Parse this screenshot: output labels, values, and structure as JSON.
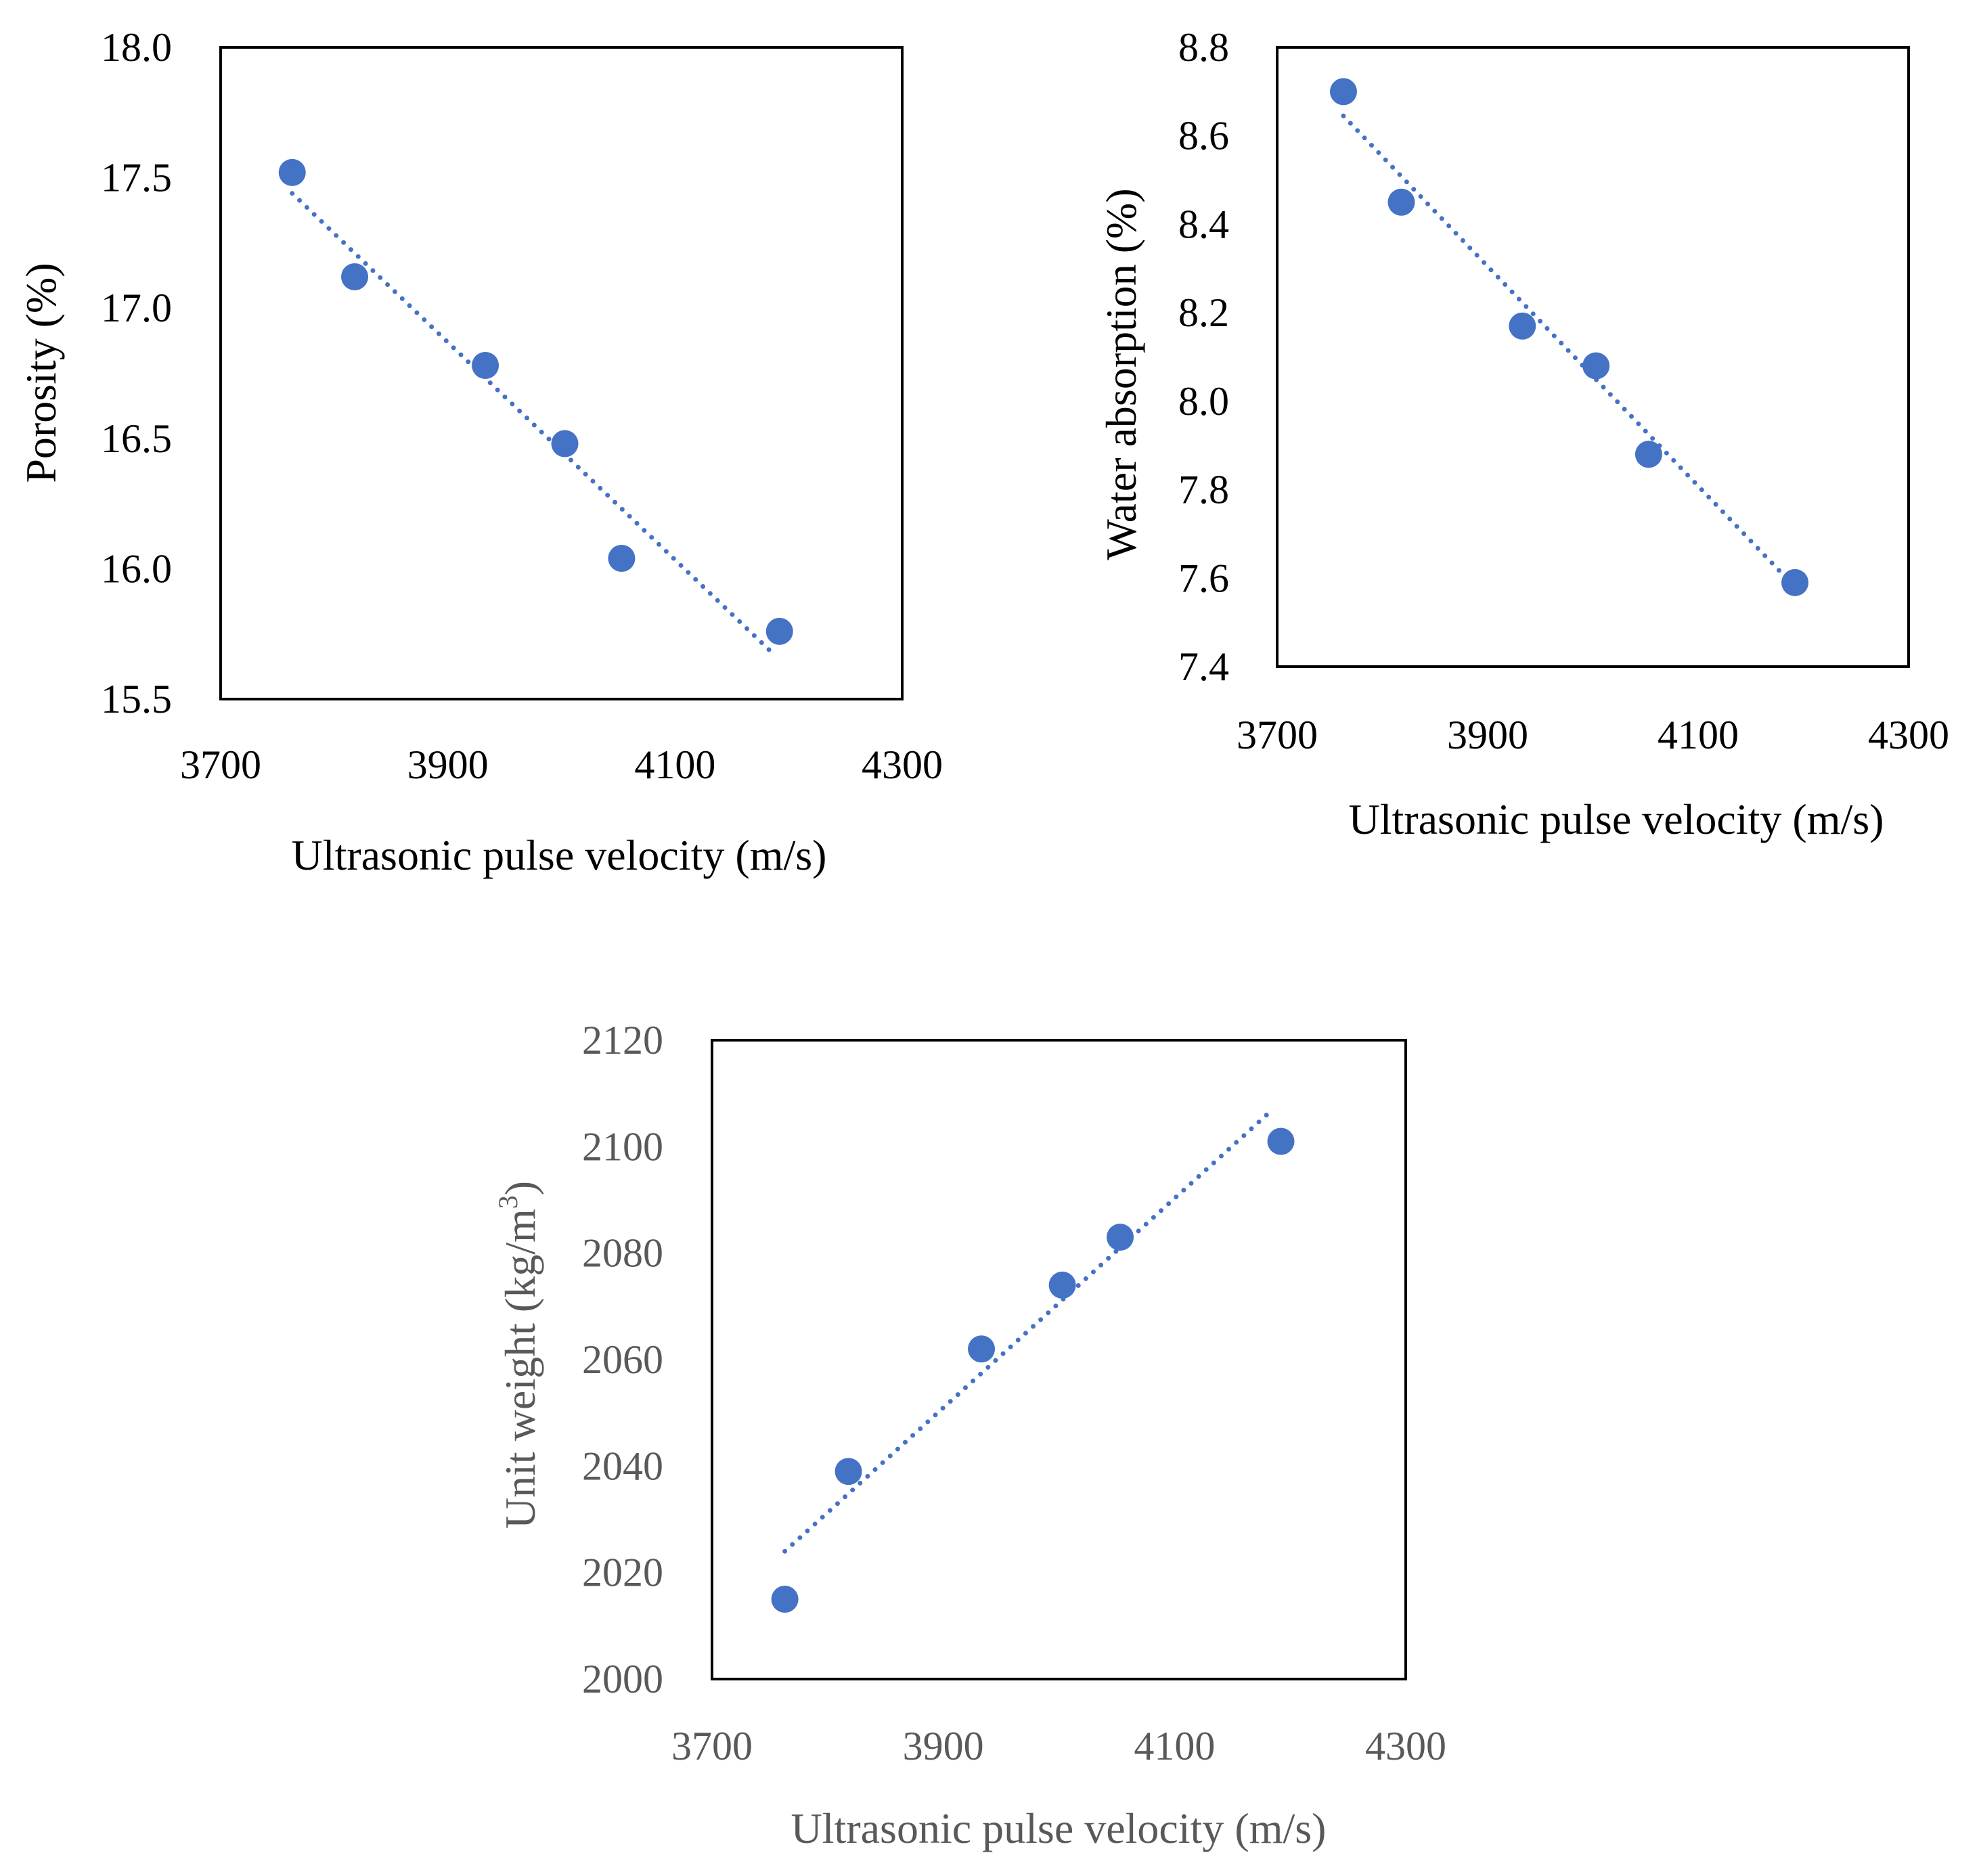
{
  "colors": {
    "marker": "#4472C4",
    "trendline": "#4472C4",
    "frame": "#000000",
    "text_dark": "#000000",
    "text_gray": "#595959"
  },
  "chart_data": [
    {
      "type": "scatter",
      "name": "porosity",
      "title": "",
      "xlabel": "Ultrasonic pulse velocity (m/s)",
      "ylabel": "Porosity (%)",
      "xlim": [
        3700,
        4300
      ],
      "ylim": [
        15.5,
        18.0
      ],
      "x_ticks": [
        "3700",
        "3900",
        "4100",
        "4300"
      ],
      "y_ticks": [
        "15.5",
        "16.0",
        "16.5",
        "17.0",
        "17.5",
        "18.0"
      ],
      "x": [
        3763,
        3818,
        3933,
        4003,
        4053,
        4192
      ],
      "y": [
        17.52,
        17.12,
        16.78,
        16.48,
        16.04,
        15.76
      ],
      "trendline": {
        "type": "linear",
        "x": [
          3763,
          4185
        ],
        "y": [
          17.44,
          15.68
        ]
      },
      "grid": false,
      "text_color": "dark"
    },
    {
      "type": "scatter",
      "name": "water-absorption",
      "title": "",
      "xlabel": "Ultrasonic pulse velocity (m/s)",
      "ylabel": "Water absorption (%)",
      "xlim": [
        3700,
        4300
      ],
      "ylim": [
        7.4,
        8.8
      ],
      "x_ticks": [
        "3700",
        "3900",
        "4100",
        "4300"
      ],
      "y_ticks": [
        "7.4",
        "7.6",
        "7.8",
        "8.0",
        "8.2",
        "8.4",
        "8.6",
        "8.8"
      ],
      "x": [
        3763,
        3818,
        3933,
        4003,
        4053,
        4192
      ],
      "y": [
        8.7,
        8.45,
        8.17,
        8.08,
        7.88,
        7.59
      ],
      "trendline": {
        "type": "linear",
        "x": [
          3763,
          4192
        ],
        "y": [
          8.645,
          7.58
        ]
      },
      "grid": false,
      "text_color": "dark"
    },
    {
      "type": "scatter",
      "name": "unit-weight",
      "title": "",
      "xlabel": "Ultrasonic pulse velocity (m/s)",
      "ylabel": "Unit weight (kg/m",
      "ylabel_superscript": "3",
      "ylabel_suffix": ")",
      "xlim": [
        3700,
        4300
      ],
      "ylim": [
        2000,
        2120
      ],
      "x_ticks": [
        "3700",
        "3900",
        "4100",
        "4300"
      ],
      "y_ticks": [
        "2000",
        "2020",
        "2040",
        "2060",
        "2080",
        "2100",
        "2120"
      ],
      "x": [
        3763,
        3818,
        3933,
        4003,
        4053,
        4192
      ],
      "y": [
        2015,
        2039,
        2062,
        2074,
        2083,
        2101
      ],
      "trendline": {
        "type": "linear",
        "x": [
          3763,
          4185
        ],
        "y": [
          2024,
          2107
        ]
      },
      "grid": false,
      "text_color": "gray"
    }
  ]
}
